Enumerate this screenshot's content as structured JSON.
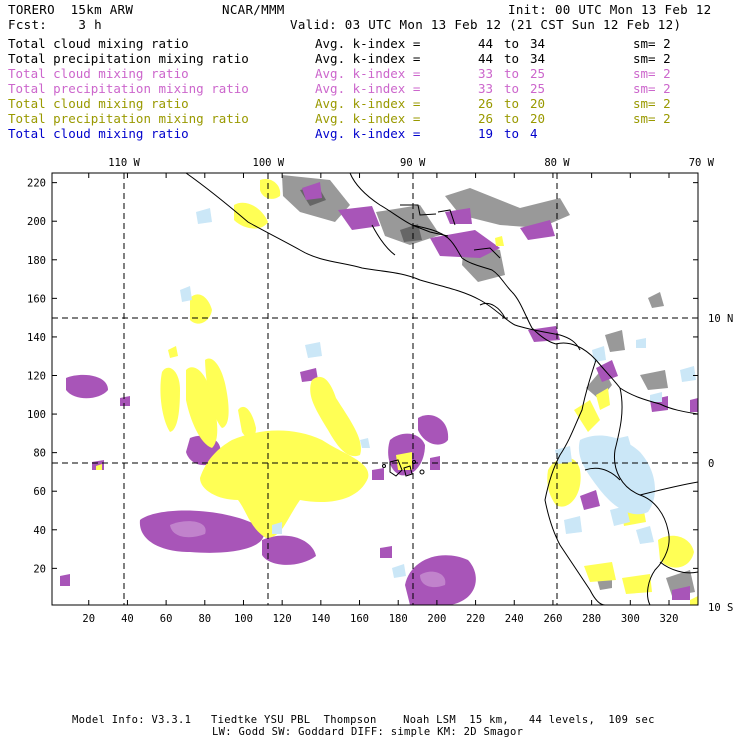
{
  "header": {
    "model_name": "TORERO  15km ARW",
    "org": "NCAR/MMM",
    "init": "Init: 00 UTC Mon 13 Feb 12",
    "fcst": "Fcst:    3 h",
    "valid": "Valid: 03 UTC Mon 13 Feb 12 (21 CST Sun 12 Feb 12)"
  },
  "fields": [
    {
      "name": "Total cloud mixing ratio",
      "kindex_label": "Avg. k-index =",
      "from": "44",
      "to_word": "to",
      "to": "34",
      "sm": "sm= 2",
      "color": "#000000"
    },
    {
      "name": "Total precipitation mixing ratio",
      "kindex_label": "Avg. k-index =",
      "from": "44",
      "to_word": "to",
      "to": "34",
      "sm": "sm= 2",
      "color": "#000000"
    },
    {
      "name": "Total cloud mixing ratio",
      "kindex_label": "Avg. k-index =",
      "from": "33",
      "to_word": "to",
      "to": "25",
      "sm": "sm= 2",
      "color": "#cc66cc"
    },
    {
      "name": "Total precipitation mixing ratio",
      "kindex_label": "Avg. k-index =",
      "from": "33",
      "to_word": "to",
      "to": "25",
      "sm": "sm= 2",
      "color": "#cc66cc"
    },
    {
      "name": "Total cloud mixing ratio",
      "kindex_label": "Avg. k-index =",
      "from": "26",
      "to_word": "to",
      "to": "20",
      "sm": "sm= 2",
      "color": "#999900"
    },
    {
      "name": "Total precipitation mixing ratio",
      "kindex_label": "Avg. k-index =",
      "from": "26",
      "to_word": "to",
      "to": "20",
      "sm": "sm= 2",
      "color": "#999900"
    },
    {
      "name": "Total cloud mixing ratio",
      "kindex_label": "Avg. k-index =",
      "from": "19",
      "to_word": "to",
      "to": "4",
      "sm": "",
      "color": "#0000cc"
    }
  ],
  "map": {
    "longitude_labels": [
      {
        "value": -110,
        "text": "110 W"
      },
      {
        "value": -100,
        "text": "100 W"
      },
      {
        "value": -90,
        "text": "90 W"
      },
      {
        "value": -80,
        "text": "80 W"
      },
      {
        "value": -70,
        "text": "70 W"
      }
    ],
    "latitude_labels": [
      {
        "value": 10,
        "text": "10 N"
      },
      {
        "value": 0,
        "text": "0"
      },
      {
        "value": -10,
        "text": "10 S"
      }
    ],
    "x_grid_ticks": [
      20,
      40,
      60,
      80,
      100,
      120,
      140,
      160,
      180,
      200,
      220,
      240,
      260,
      280,
      300,
      320
    ],
    "y_grid_ticks": [
      20,
      40,
      60,
      80,
      100,
      120,
      140,
      160,
      180,
      200,
      220
    ],
    "x_range": [
      1,
      335
    ],
    "y_range": [
      1,
      225
    ],
    "fill_colors": {
      "gray": "#999999",
      "dark_gray": "#666666",
      "purple": "#a855b8",
      "light_purple": "#c183cc",
      "yellow": "#ffff55",
      "light_blue": "#cbe7f7"
    }
  },
  "footer": {
    "line1": "Model Info: V3.3.1   Tiedtke YSU PBL  Thompson    Noah LSM  15 km,   44 levels,  109 sec",
    "line2": "LW: Godd SW: Goddard DIFF: simple KM: 2D Smagor"
  }
}
